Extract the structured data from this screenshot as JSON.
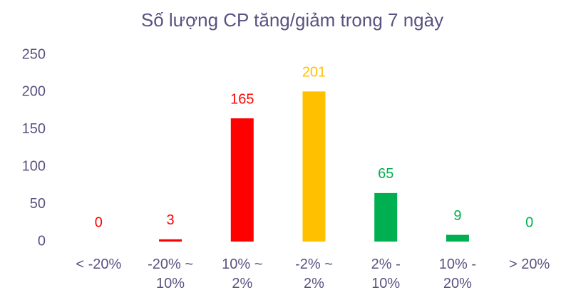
{
  "chart_data": {
    "type": "bar",
    "title": "Số lượng CP tăng/giảm trong 7 ngày",
    "categories": [
      "< -20%",
      "-20% ~ 10%",
      "10% ~ 2%",
      "-2% ~ 2%",
      "2% - 10%",
      "10% - 20%",
      "> 20%"
    ],
    "values": [
      0,
      3,
      165,
      201,
      65,
      9,
      0
    ],
    "colors": [
      "#ff0000",
      "#ff0000",
      "#ff0000",
      "#ffc000",
      "#00b050",
      "#00b050",
      "#00b050"
    ],
    "ylim": [
      0,
      250
    ],
    "yticks": [
      0,
      50,
      100,
      150,
      200,
      250
    ],
    "grid": false
  }
}
